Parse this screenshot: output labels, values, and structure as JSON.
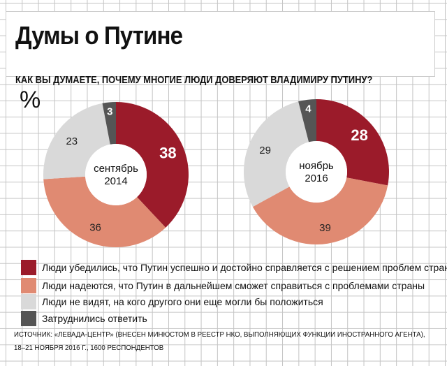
{
  "title": "Думы о Путине",
  "question": "КАК ВЫ ДУМАЕТЕ, ПОЧЕМУ МНОГИЕ ЛЮДИ ДОВЕРЯЮТ ВЛАДИМИРУ ПУТИНУ?",
  "unit": "%",
  "chart_data": [
    {
      "type": "pie",
      "style": "donut",
      "center_label": [
        "сентябрь",
        "2014"
      ],
      "categories": [
        "Люди убедились, что Путин успешно и достойно справляется с решением проблем страны",
        "Люди надеются, что Путин в дальнейшем сможет справиться с проблемами страны",
        "Люди не видят, на кого другого они еще могли бы положиться",
        "Затруднились  ответить"
      ],
      "values": [
        38,
        36,
        23,
        3
      ]
    },
    {
      "type": "pie",
      "style": "donut",
      "center_label": [
        "ноябрь",
        "2016"
      ],
      "categories": [
        "Люди убедились, что Путин успешно и достойно справляется с решением проблем страны",
        "Люди надеются, что Путин в дальнейшем сможет справиться с проблемами страны",
        "Люди не видят, на кого другого они еще могли бы положиться",
        "Затруднились  ответить"
      ],
      "values": [
        28,
        39,
        29,
        4
      ]
    }
  ],
  "colors": [
    "#9b1b2a",
    "#e08a72",
    "#d9d9d9",
    "#555555"
  ],
  "legend": [
    "Люди убедились, что Путин успешно и достойно справляется с решением проблем страны",
    "Люди надеются, что Путин в дальнейшем сможет справиться с проблемами страны",
    "Люди не видят, на кого другого они еще могли бы положиться",
    "Затруднились  ответить"
  ],
  "source": [
    "ИСТОЧНИК: «ЛЕВАДА-ЦЕНТР» (ВНЕСЕН МИНЮСТОМ В РЕЕСТР НКО, ВЫПОЛНЯЮЩИХ ФУНКЦИИ ИНОСТРАННОГО АГЕНТА),",
    "18–21 НОЯБРЯ 2016 Г., 1600 РЕСПОНДЕНТОВ"
  ]
}
